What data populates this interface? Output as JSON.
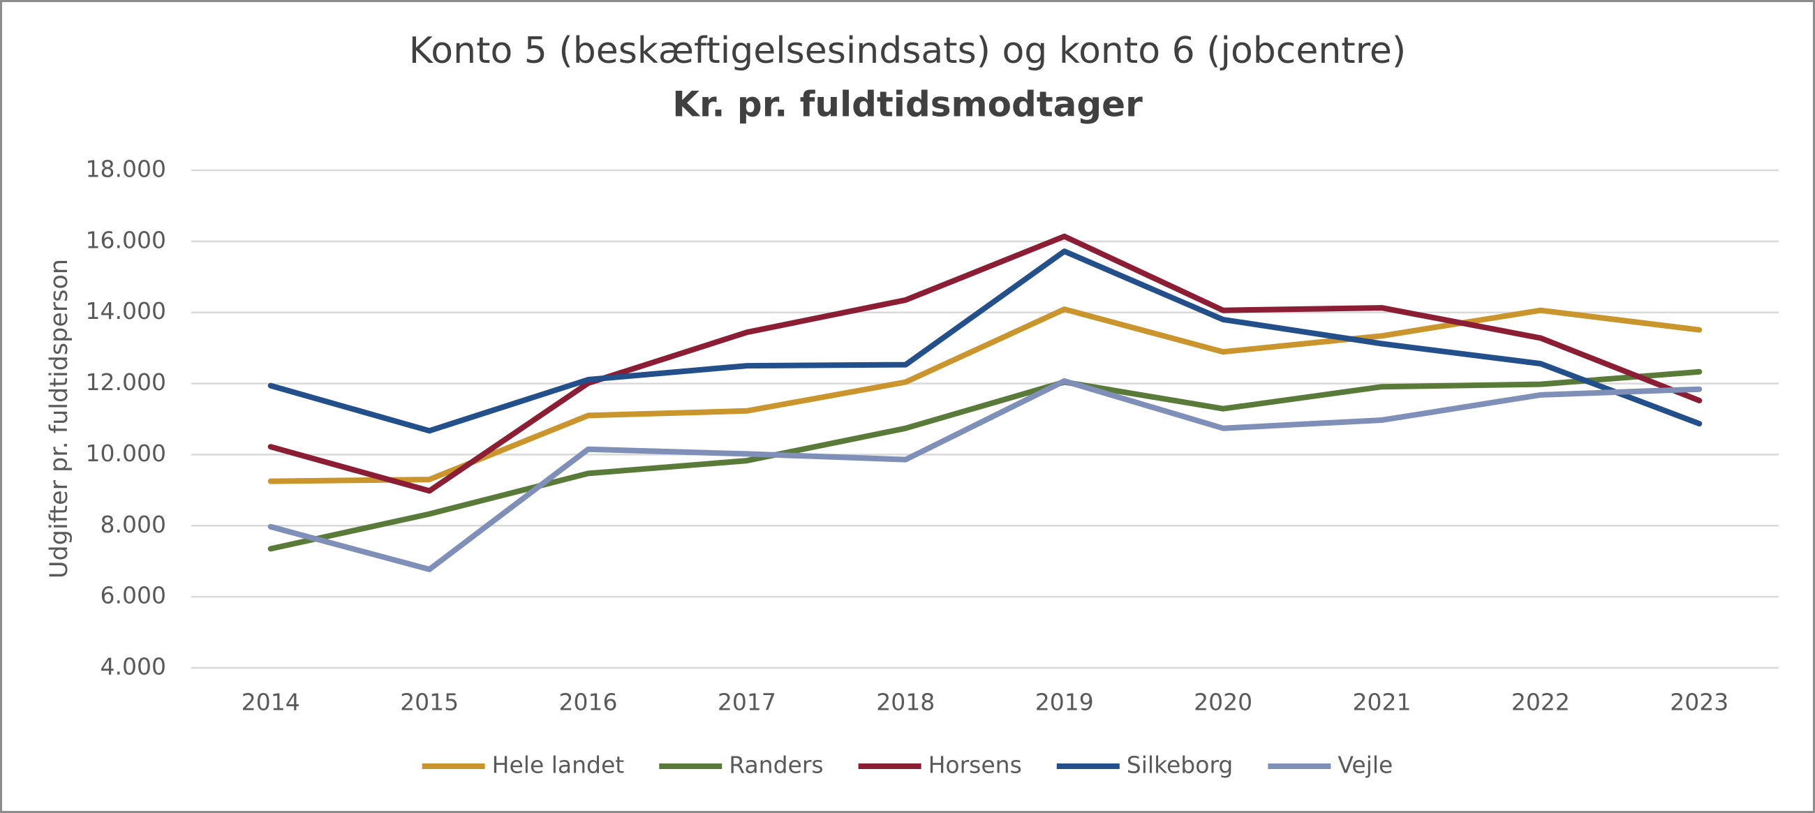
{
  "chart_data": {
    "type": "line",
    "title": "Konto 5 (beskæftigelsesindsats) og konto 6 (jobcentre)",
    "subtitle": "Kr. pr. fuldtidsmodtager",
    "y_label": "Udgifter pr. fuldtidsperson",
    "categories": [
      "2014",
      "2015",
      "2016",
      "2017",
      "2018",
      "2019",
      "2020",
      "2021",
      "2022",
      "2023"
    ],
    "series": [
      {
        "name": "Hele landet",
        "color": "#c9952c",
        "values": [
          9250,
          9300,
          11100,
          11230,
          12040,
          14090,
          12890,
          13340,
          14060,
          13510
        ]
      },
      {
        "name": "Randers",
        "color": "#5a7a3a",
        "values": [
          7350,
          8330,
          9470,
          9830,
          10740,
          12040,
          11290,
          11910,
          11980,
          12330
        ]
      },
      {
        "name": "Horsens",
        "color": "#8b1e35",
        "values": [
          10220,
          8980,
          12010,
          13440,
          14350,
          16140,
          14060,
          14130,
          13280,
          11520
        ]
      },
      {
        "name": "Silkeborg",
        "color": "#234f8a",
        "values": [
          11940,
          10670,
          12110,
          12500,
          12530,
          15720,
          13800,
          13120,
          12560,
          10870
        ]
      },
      {
        "name": "Vejle",
        "color": "#7f8fb8",
        "values": [
          7970,
          6770,
          10150,
          10020,
          9860,
          12070,
          10740,
          10970,
          11680,
          11840
        ]
      }
    ],
    "ylim": [
      4000,
      18000
    ],
    "yticks": [
      {
        "value": 4000,
        "label": "4.000"
      },
      {
        "value": 6000,
        "label": "6.000"
      },
      {
        "value": 8000,
        "label": "8.000"
      },
      {
        "value": 10000,
        "label": "10.000"
      },
      {
        "value": 12000,
        "label": "12.000"
      },
      {
        "value": 14000,
        "label": "14.000"
      },
      {
        "value": 16000,
        "label": "16.000"
      },
      {
        "value": 18000,
        "label": "18.000"
      }
    ],
    "grid": true,
    "legend": "bottom"
  }
}
